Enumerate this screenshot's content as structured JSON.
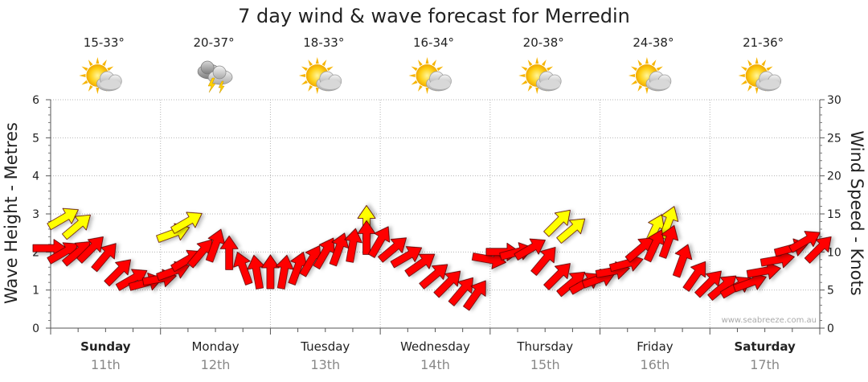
{
  "chart_data": {
    "type": "line",
    "title": "7 day wind & wave forecast for Merredin",
    "ylabel_left": "Wave Height - Metres",
    "ylabel_right": "Wind Speed - Knots",
    "ylim_left": [
      0,
      6
    ],
    "ylim_right": [
      0,
      30
    ],
    "yticks_left": [
      "0",
      "1",
      "2",
      "3",
      "4",
      "5",
      "6"
    ],
    "yticks_right": [
      "0",
      "5",
      "10",
      "15",
      "20",
      "25",
      "30"
    ],
    "watermark": "www.seabreeze.com.au",
    "grid": true,
    "days": [
      {
        "name": "Sunday",
        "date": "11th",
        "temp": "15-33°",
        "icon": "partly-cloudy-sun-icon",
        "bold": true
      },
      {
        "name": "Monday",
        "date": "12th",
        "temp": "20-37°",
        "icon": "thunderstorm-cloud-icon",
        "bold": false
      },
      {
        "name": "Tuesday",
        "date": "13th",
        "temp": "18-33°",
        "icon": "partly-cloudy-sun-icon",
        "bold": false
      },
      {
        "name": "Wednesday",
        "date": "14th",
        "temp": "16-34°",
        "icon": "partly-cloudy-sun-icon",
        "bold": false
      },
      {
        "name": "Thursday",
        "date": "15th",
        "temp": "20-38°",
        "icon": "partly-cloudy-sun-icon",
        "bold": false
      },
      {
        "name": "Friday",
        "date": "16th",
        "temp": "24-38°",
        "icon": "partly-cloudy-sun-icon",
        "bold": false
      },
      {
        "name": "Saturday",
        "date": "17th",
        "temp": "21-36°",
        "icon": "partly-cloudy-sun-icon",
        "bold": true
      }
    ],
    "series": [
      {
        "kind": "wind-arrows",
        "color": "#ff0000",
        "gust_color": "#ffff00",
        "x_hours": [
          0,
          3,
          6,
          9,
          12,
          15,
          18,
          21,
          24,
          27,
          30,
          33,
          36,
          39,
          42,
          45,
          48,
          51,
          54,
          57,
          60,
          63,
          66,
          69,
          72,
          75,
          78,
          81,
          84,
          87,
          90,
          93,
          96,
          99,
          102,
          105,
          108,
          111,
          114,
          117,
          120,
          123,
          126,
          129,
          132,
          135,
          138,
          141,
          144,
          147,
          150,
          153,
          156,
          159,
          162,
          165,
          168
        ],
        "wind_speed_knots": [
          10.5,
          10,
          10,
          10.5,
          9.5,
          7.5,
          6.5,
          6,
          6.5,
          7.5,
          9,
          10,
          11,
          10,
          8,
          7.5,
          7.5,
          7.5,
          8,
          9,
          10,
          10.5,
          11,
          12,
          11.5,
          10.5,
          9.5,
          8.5,
          7,
          6,
          5,
          4.5,
          9,
          10,
          10,
          10.5,
          9,
          7,
          6,
          6,
          6.5,
          7.5,
          8.5,
          10.5,
          11,
          11.5,
          9,
          7,
          6,
          5.5,
          5.5,
          6,
          7.5,
          9,
          10.5,
          11.5,
          10.5
        ],
        "wind_bearing_deg": [
          270,
          240,
          230,
          225,
          220,
          225,
          240,
          255,
          260,
          250,
          240,
          220,
          200,
          180,
          160,
          170,
          180,
          190,
          200,
          210,
          210,
          200,
          190,
          180,
          210,
          230,
          240,
          235,
          230,
          225,
          220,
          215,
          280,
          270,
          255,
          240,
          220,
          225,
          230,
          240,
          250,
          260,
          255,
          230,
          205,
          200,
          200,
          215,
          225,
          230,
          240,
          250,
          260,
          260,
          255,
          240,
          225
        ],
        "wind_gusts_knots": [
          null,
          14.5,
          13.5,
          null,
          null,
          null,
          null,
          null,
          null,
          12.5,
          14,
          null,
          null,
          null,
          null,
          null,
          null,
          null,
          null,
          null,
          null,
          null,
          null,
          14,
          null,
          null,
          null,
          null,
          null,
          null,
          null,
          null,
          null,
          null,
          null,
          null,
          null,
          14,
          13,
          null,
          null,
          null,
          null,
          null,
          13,
          14,
          null,
          null,
          null,
          null,
          null,
          null,
          null,
          null,
          null,
          null,
          null
        ]
      }
    ]
  }
}
